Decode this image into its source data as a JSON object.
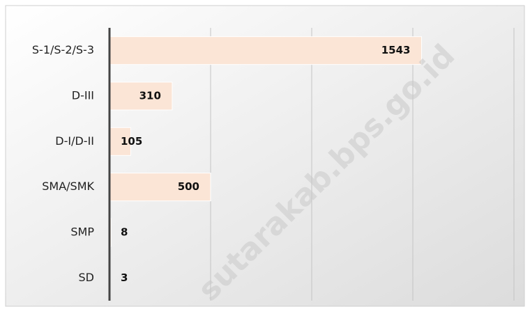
{
  "chart_data": {
    "type": "bar",
    "orientation": "horizontal",
    "categories": [
      "S-1/S-2/S-3",
      "D-III",
      "D-I/D-II",
      "SMA/SMK",
      "SMP",
      "SD"
    ],
    "values": [
      1543,
      310,
      105,
      500,
      8,
      3
    ],
    "color": "#fbe5d6",
    "xlim": [
      0,
      2000
    ],
    "xticks": [
      0,
      500,
      1000,
      1500,
      2000
    ],
    "grid": true,
    "watermark": "sutarakab.bps.go.id"
  }
}
